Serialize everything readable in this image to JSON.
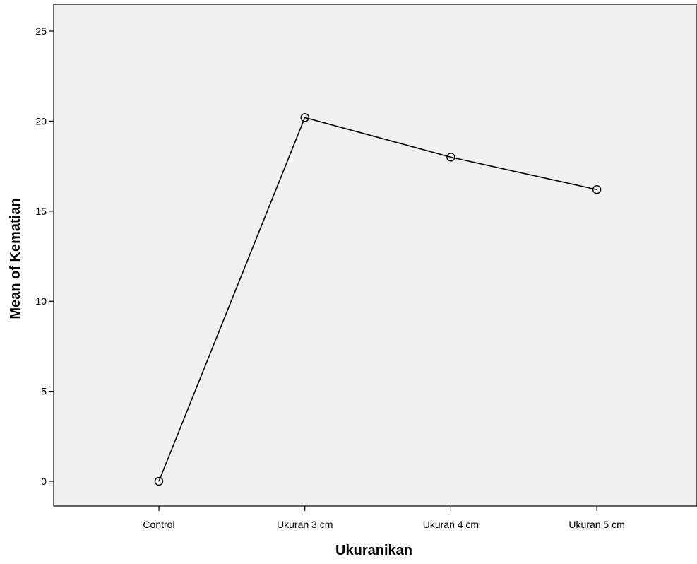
{
  "chart_data": {
    "type": "line",
    "title": "",
    "xlabel": "Ukuranikan",
    "ylabel": "Mean of Kematian",
    "categories": [
      "Control",
      "Ukuran 3 cm",
      "Ukuran 4 cm",
      "Ukuran 5 cm"
    ],
    "series": [
      {
        "values": [
          0,
          20.2,
          18.0,
          16.2
        ]
      }
    ],
    "ylim": [
      0,
      25
    ],
    "yticks": [
      "0",
      "5",
      "10",
      "15",
      "20",
      "25"
    ],
    "grid": false,
    "legend": "none",
    "marker": "circle-open",
    "colors": {
      "plot_background": "#f0f0f0",
      "line": "#000000",
      "axis": "#000000"
    }
  }
}
